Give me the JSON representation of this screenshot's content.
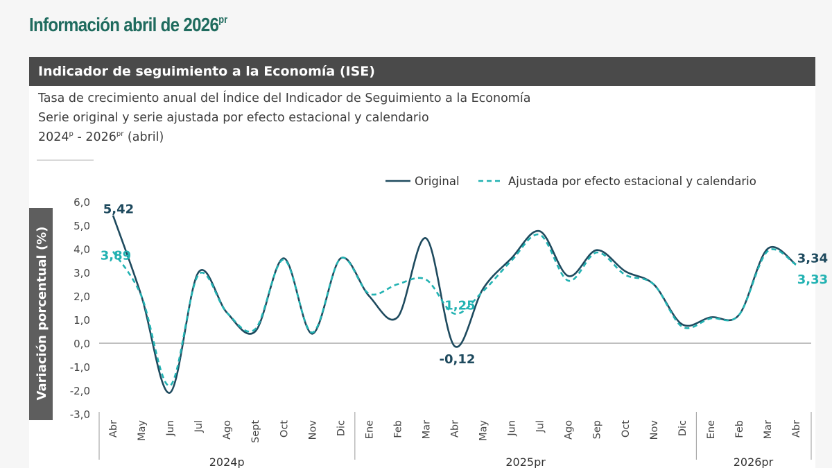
{
  "header": {
    "title_main": "Información abril de 2026",
    "title_sup": "pr"
  },
  "card": {
    "banner": "Indicador de seguimiento a la Economía (ISE)",
    "subtitle_line1": "Tasa de crecimiento anual del Índice del Indicador de Seguimiento a la Economía",
    "subtitle_line2": "Serie original y serie ajustada por efecto estacional y calendario",
    "period_start": "2024",
    "period_start_sup": "p",
    "period_sep": " - 2026",
    "period_end_sup": "pr",
    "period_tail": " (abril)"
  },
  "colors": {
    "original": "#1e4a5e",
    "adjusted": "#22b2b2",
    "axis": "#999999",
    "zero_line": "#999999",
    "ylabel_bg": "#5e5e5e"
  },
  "chart_data": {
    "type": "line",
    "ylabel": "Variación porcentual (%)",
    "ylim": [
      -3.0,
      6.0
    ],
    "yticks": [
      "6,0",
      "5,0",
      "4,0",
      "3,0",
      "2,0",
      "1,0",
      "0,0",
      "-1,0",
      "-2,0",
      "-3,0"
    ],
    "ytick_values": [
      6,
      5,
      4,
      3,
      2,
      1,
      0,
      -1,
      -2,
      -3
    ],
    "categories": [
      "Abr",
      "May",
      "Jun",
      "Jul",
      "Ago",
      "Sept",
      "Oct",
      "Nov",
      "Dic",
      "Ene",
      "Feb",
      "Mar",
      "Abr",
      "May",
      "Jun",
      "Jul",
      "Ago",
      "Sep",
      "Oct",
      "Nov",
      "Dic",
      "Ene",
      "Feb",
      "Mar",
      "Abr"
    ],
    "year_groups": [
      {
        "label": "2024p",
        "start": 0,
        "end": 8
      },
      {
        "label": "2025pr",
        "start": 9,
        "end": 20
      },
      {
        "label": "2026pr",
        "start": 21,
        "end": 24
      }
    ],
    "series": [
      {
        "name": "Original",
        "style": "solid",
        "values": [
          5.42,
          2.0,
          -2.1,
          3.0,
          1.3,
          0.5,
          3.6,
          0.4,
          3.6,
          2.0,
          1.1,
          4.45,
          -0.12,
          2.3,
          3.6,
          4.75,
          2.85,
          3.95,
          3.05,
          2.5,
          0.8,
          1.1,
          1.2,
          4.0,
          3.34
        ]
      },
      {
        "name": "Ajustada por efecto estacional y calendario",
        "style": "dashed",
        "values": [
          3.89,
          2.0,
          -1.8,
          2.9,
          1.3,
          0.6,
          3.55,
          0.45,
          3.6,
          2.1,
          2.5,
          2.7,
          1.25,
          2.2,
          3.5,
          4.6,
          2.65,
          3.85,
          2.9,
          2.5,
          0.7,
          1.05,
          1.2,
          3.9,
          3.33
        ]
      }
    ],
    "annotations": [
      {
        "text": "5,42",
        "series": 0,
        "index": 0,
        "pos": "above"
      },
      {
        "text": "3,89",
        "series": 1,
        "index": 0,
        "pos": "below"
      },
      {
        "text": "1,25",
        "series": 1,
        "index": 12,
        "pos": "above"
      },
      {
        "text": "-0,12",
        "series": 0,
        "index": 12,
        "pos": "below"
      },
      {
        "text": "3,34",
        "series": 0,
        "index": 24,
        "pos": "right-up"
      },
      {
        "text": "3,33",
        "series": 1,
        "index": 24,
        "pos": "right-down"
      }
    ],
    "legend": "top-right",
    "grid": false
  }
}
